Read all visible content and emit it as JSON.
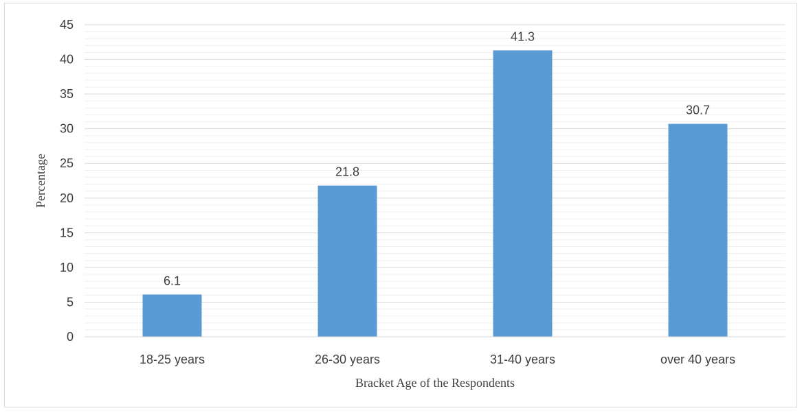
{
  "chart_data": {
    "type": "bar",
    "categories": [
      "18-25 years",
      "26-30 years",
      "31-40 years",
      "over 40 years"
    ],
    "values": [
      6.1,
      21.8,
      41.3,
      30.7
    ],
    "data_labels": [
      "6.1",
      "21.8",
      "41.3",
      "30.7"
    ],
    "title": "",
    "xlabel": "Bracket Age of the Respondents",
    "ylabel": "Percentage",
    "ylim": [
      0,
      45
    ],
    "y_ticks": [
      0,
      5,
      10,
      15,
      20,
      25,
      30,
      35,
      40,
      45
    ],
    "grid": true,
    "minor_grid": true,
    "legend": "none",
    "colors": {
      "bar": "#5b9bd5",
      "major_grid": "#d9d9d9",
      "minor_grid": "#efefef",
      "axis": "#d9d9d9",
      "text": "#404040"
    }
  }
}
